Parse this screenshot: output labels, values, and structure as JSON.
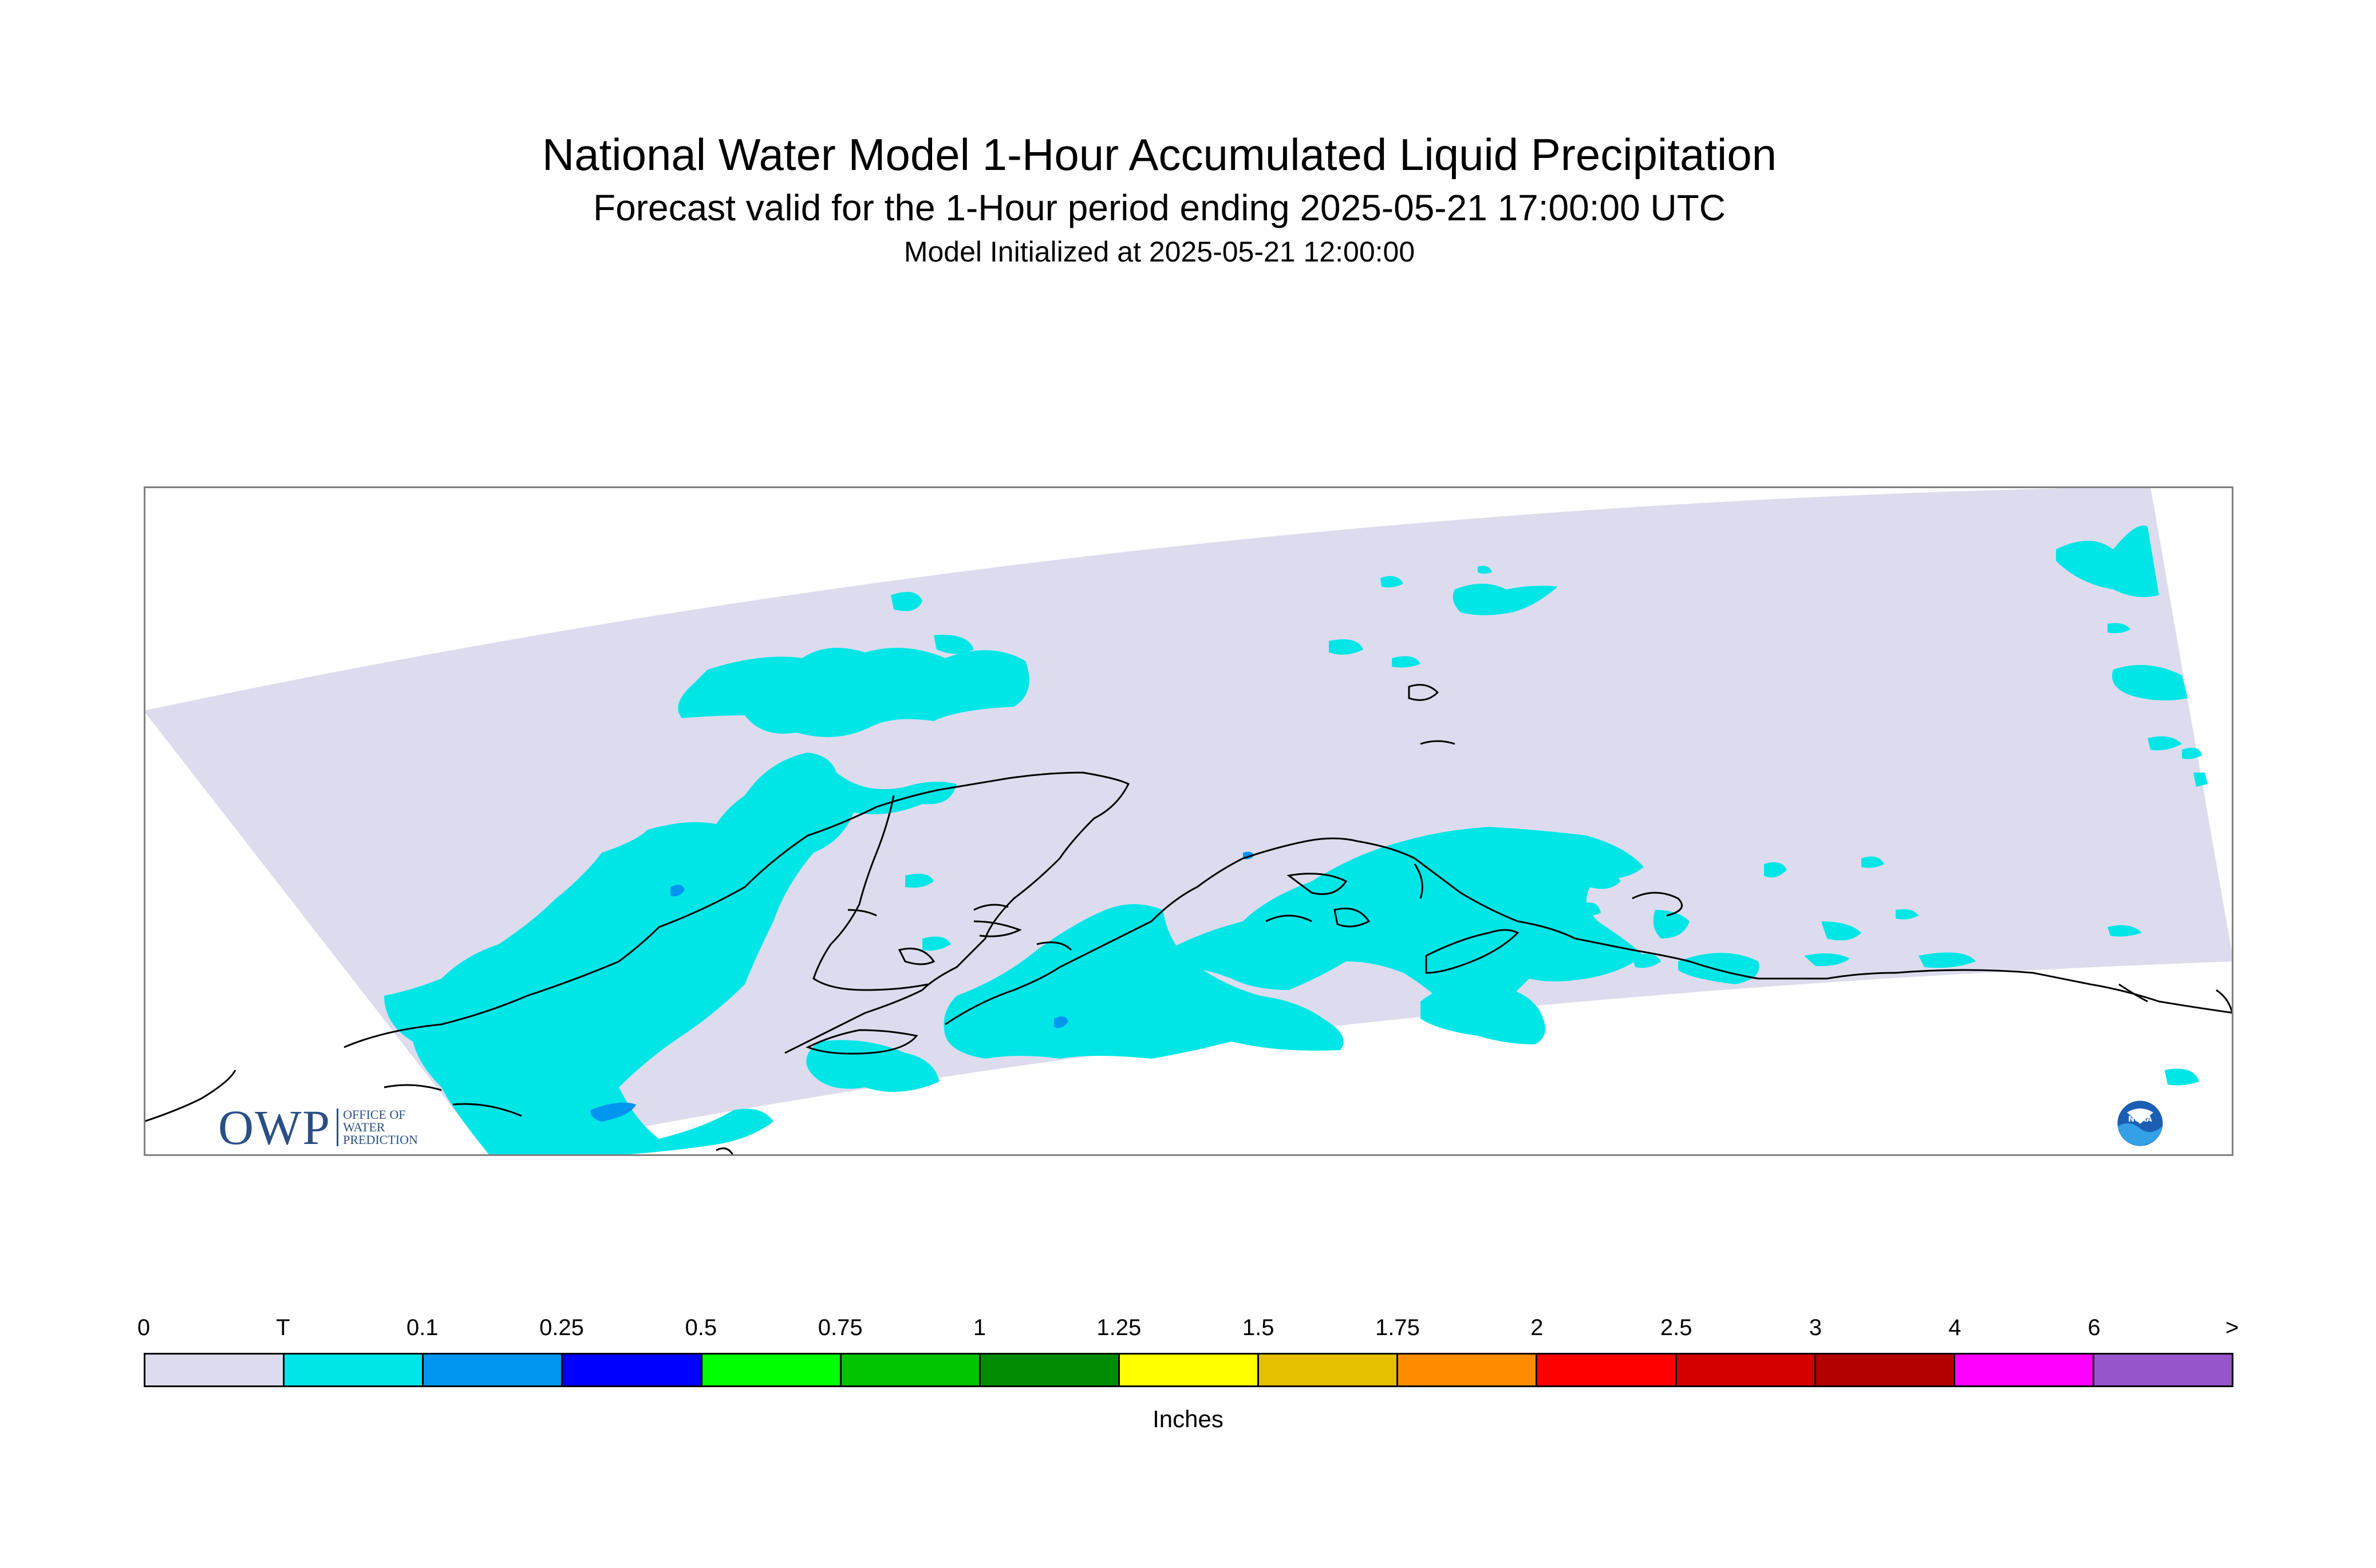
{
  "header": {
    "title": "National Water Model 1-Hour Accumulated Liquid Precipitation",
    "subtitle": "Forecast valid for the 1-Hour period ending 2025-05-21 17:00:00 UTC",
    "initialized": "Model Initialized at 2025-05-21 12:00:00"
  },
  "logos": {
    "owp_letters": "OWP",
    "owp_line1": "OFFICE OF",
    "owp_line2": "WATER",
    "owp_line3": "PREDICTION",
    "owp_color": "#2a4f86",
    "noaa_text": "NOAA"
  },
  "map": {
    "no_precip_color": "#dcdcee",
    "trace_color": "#00e6e6",
    "light_color": "#0096f0",
    "coast_color": "#000000"
  },
  "legend": {
    "labels": [
      "0",
      "T",
      "0.1",
      "0.25",
      "0.5",
      "0.75",
      "1",
      "1.25",
      "1.5",
      "1.75",
      "2",
      "2.5",
      "3",
      "4",
      "6",
      ">"
    ],
    "colors": [
      "#dcdcee",
      "#00e6e6",
      "#0096f0",
      "#0000ff",
      "#00ff00",
      "#00c400",
      "#008c00",
      "#ffff00",
      "#e6bf00",
      "#ff8c00",
      "#ff0000",
      "#d40000",
      "#b40000",
      "#ff00ff",
      "#9955cc"
    ],
    "units": "Inches"
  }
}
